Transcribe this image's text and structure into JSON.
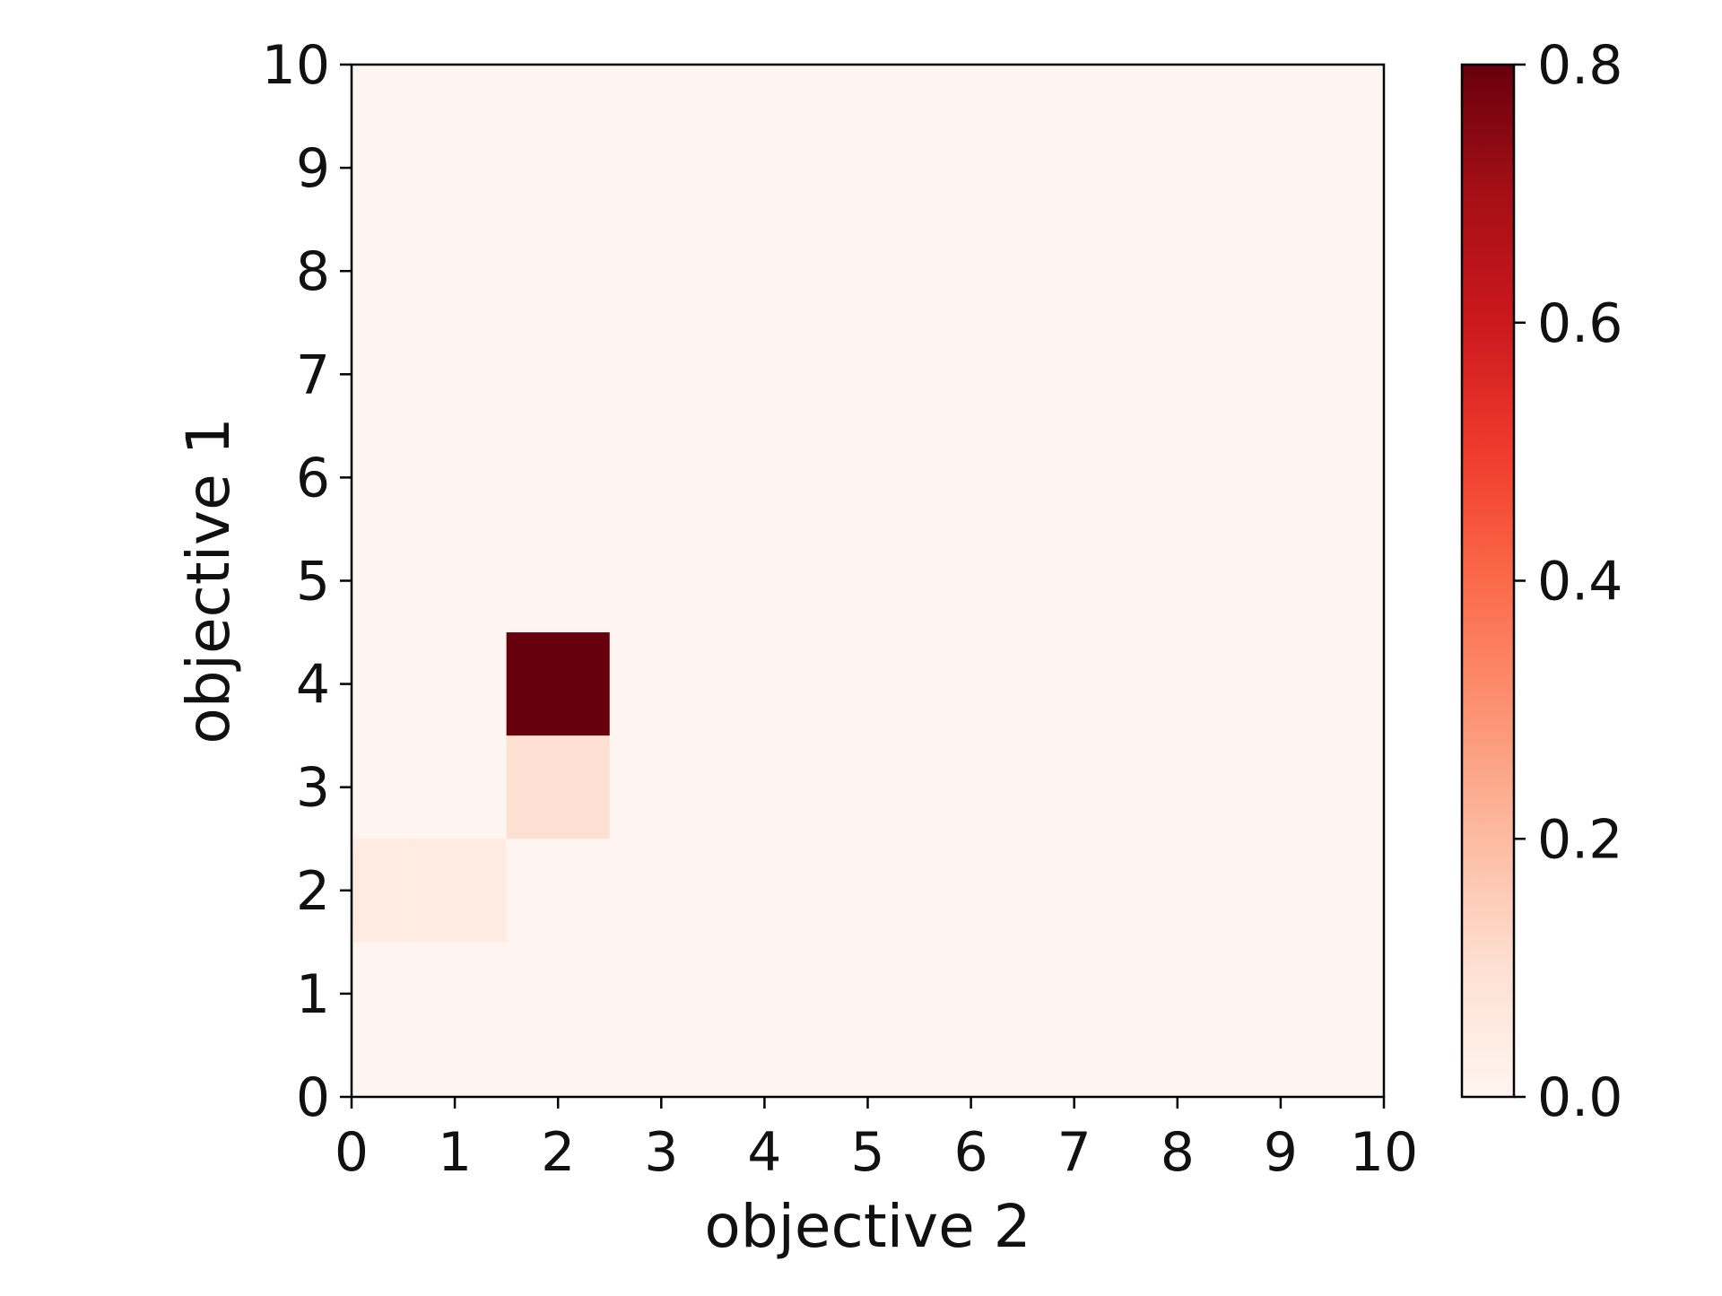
{
  "chart_data": {
    "type": "heatmap",
    "title": "",
    "xlabel": "objective 2",
    "ylabel": "objective 1",
    "xlim": [
      0,
      10
    ],
    "ylim": [
      0,
      10
    ],
    "x_ticks": [
      "0",
      "1",
      "2",
      "3",
      "4",
      "5",
      "6",
      "7",
      "8",
      "9",
      "10"
    ],
    "y_ticks": [
      "0",
      "1",
      "2",
      "3",
      "4",
      "5",
      "6",
      "7",
      "8",
      "9",
      "10"
    ],
    "grid": false,
    "cells": [
      {
        "x": 0,
        "y": 2,
        "value": 0.05
      },
      {
        "x": 1,
        "y": 2,
        "value": 0.05
      },
      {
        "x": 2,
        "y": 3,
        "value": 0.1
      },
      {
        "x": 2,
        "y": 4,
        "value": 0.8
      }
    ],
    "colorbar": {
      "label": "",
      "min": 0.0,
      "max": 0.8,
      "ticks": [
        "0.0",
        "0.2",
        "0.4",
        "0.6",
        "0.8"
      ],
      "colormap": "Reds",
      "colors": [
        "#fff5f0",
        "#fee0d2",
        "#fcbba1",
        "#fc9272",
        "#fb6a4a",
        "#ef3b2c",
        "#cb181d",
        "#a50f15",
        "#67000d"
      ]
    }
  }
}
